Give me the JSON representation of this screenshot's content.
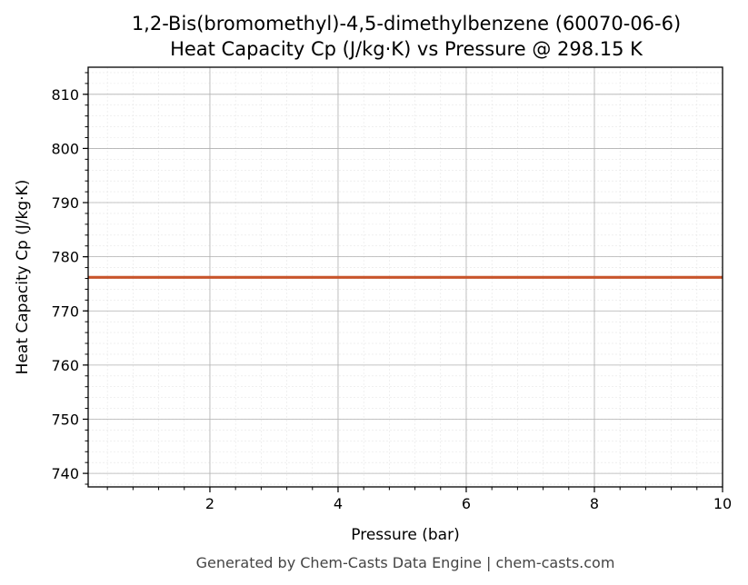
{
  "chart_data": {
    "type": "line",
    "title": "1,2-Bis(bromomethyl)-4,5-dimethylbenzene (60070-06-6)",
    "subtitle": "Heat Capacity Cp (J/kg·K) vs Pressure @ 298.15 K",
    "xlabel": "Pressure (bar)",
    "ylabel": "Heat Capacity Cp (J/kg·K)",
    "xlim": [
      0.1,
      10
    ],
    "ylim": [
      737.5,
      815
    ],
    "x_ticks": [
      2,
      4,
      6,
      8,
      10
    ],
    "y_ticks": [
      740,
      750,
      760,
      770,
      780,
      790,
      800,
      810
    ],
    "grid": true,
    "series": [
      {
        "x": [
          0.1,
          10
        ],
        "y": [
          776.2,
          776.2
        ],
        "color": "#c8552b"
      }
    ]
  },
  "footer": "Generated by Chem-Casts Data Engine | chem-casts.com"
}
